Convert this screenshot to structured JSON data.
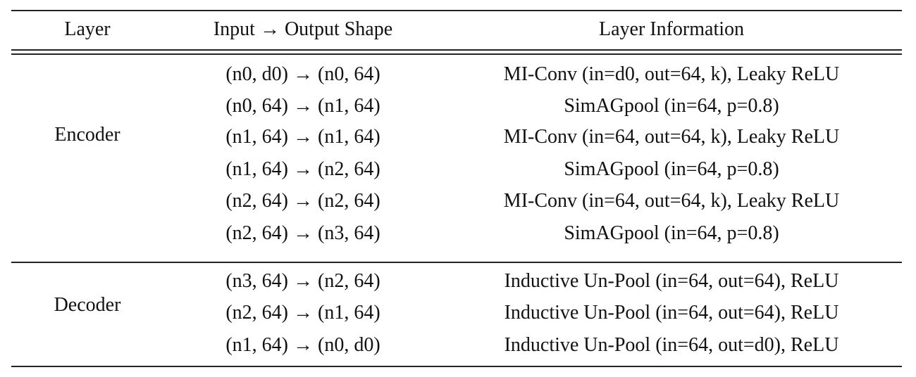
{
  "header": {
    "layer": "Layer",
    "shape": "Input → Output Shape",
    "info": "Layer Information"
  },
  "groups": [
    {
      "name": "Encoder",
      "rows": [
        {
          "shape": "(n0, d0) → (n0, 64)",
          "info": "MI-Conv (in=d0, out=64, k), Leaky ReLU"
        },
        {
          "shape": "(n0, 64) → (n1, 64)",
          "info": "SimAGpool (in=64, p=0.8)"
        },
        {
          "shape": "(n1, 64) → (n1, 64)",
          "info": "MI-Conv (in=64, out=64, k), Leaky ReLU"
        },
        {
          "shape": "(n1, 64) → (n2, 64)",
          "info": "SimAGpool (in=64, p=0.8)"
        },
        {
          "shape": "(n2, 64) → (n2, 64)",
          "info": "MI-Conv (in=64, out=64, k), Leaky ReLU"
        },
        {
          "shape": "(n2, 64) → (n3, 64)",
          "info": "SimAGpool (in=64, p=0.8)"
        }
      ]
    },
    {
      "name": "Decoder",
      "rows": [
        {
          "shape": "(n3, 64) → (n2, 64)",
          "info": "Inductive Un-Pool (in=64, out=64), ReLU"
        },
        {
          "shape": "(n2, 64) → (n1, 64)",
          "info": "Inductive Un-Pool (in=64, out=64), ReLU"
        },
        {
          "shape": "(n1, 64) → (n0, d0)",
          "info": "Inductive Un-Pool (in=64, out=d0), ReLU"
        }
      ]
    }
  ]
}
